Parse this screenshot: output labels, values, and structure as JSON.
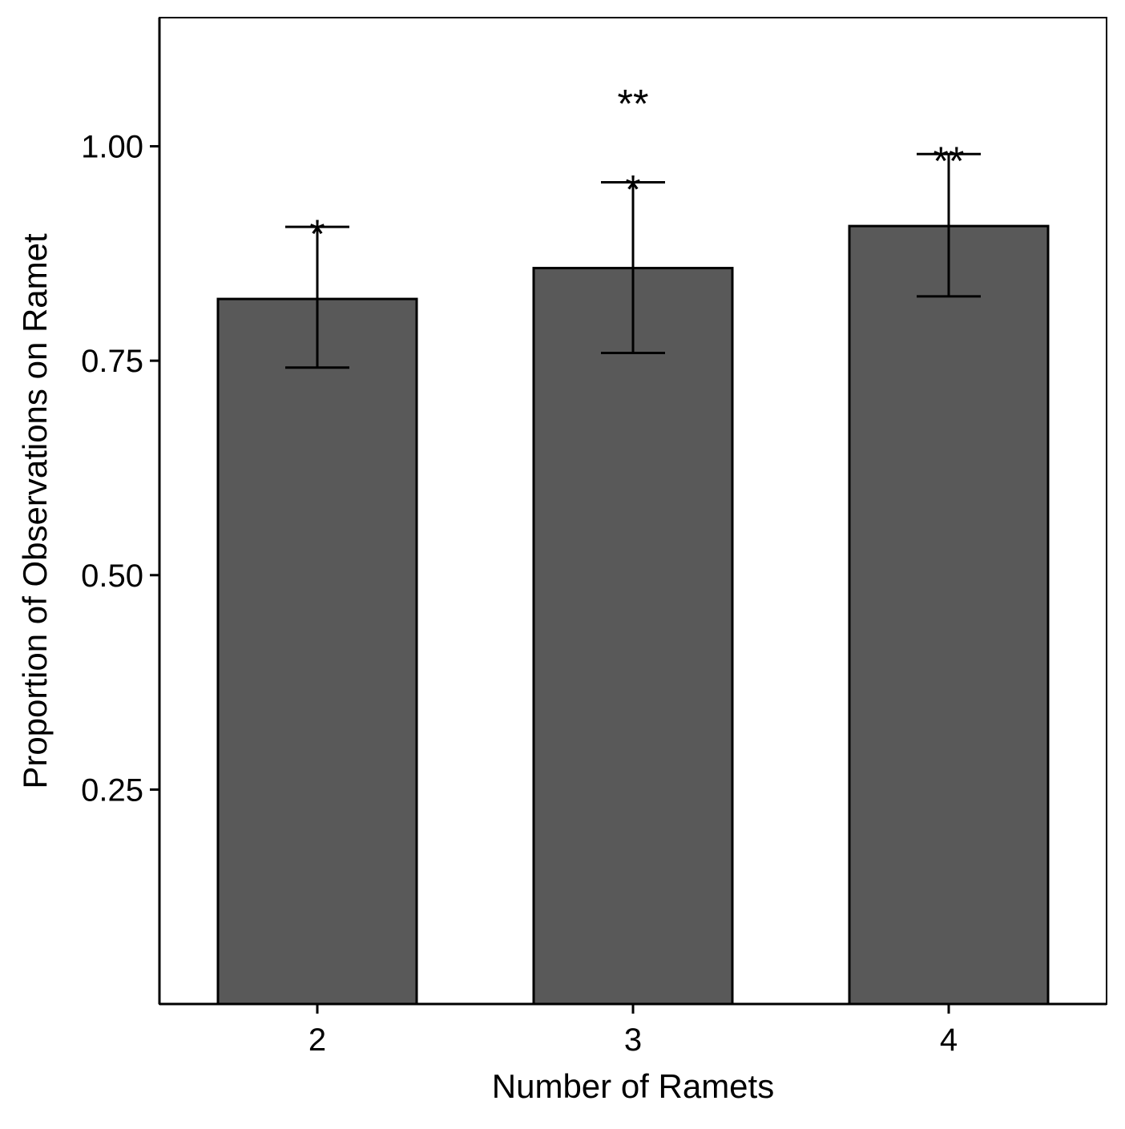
{
  "chart_data": {
    "type": "bar",
    "title": "",
    "xlabel": "Number of Ramets",
    "ylabel": "Proportion of Observations on Ramet",
    "categories": [
      "2",
      "3",
      "4"
    ],
    "values": [
      0.822,
      0.858,
      0.907
    ],
    "error_bars": [
      {
        "lower": 0.742,
        "upper": 0.906
      },
      {
        "lower": 0.759,
        "upper": 0.958
      },
      {
        "lower": 0.825,
        "upper": 0.991
      }
    ],
    "annotations": [
      {
        "category": "2",
        "lines": [
          "*"
        ]
      },
      {
        "category": "3",
        "lines": [
          "*",
          "**"
        ]
      },
      {
        "category": "4",
        "lines": [
          "**"
        ]
      }
    ],
    "yticks": [
      0.25,
      0.5,
      0.75,
      1.0
    ],
    "ytick_labels": [
      "0.25",
      "0.50",
      "0.75",
      "1.00"
    ],
    "ylim": [
      0,
      1.15
    ],
    "grid": false,
    "legend": "none",
    "colors": {
      "bar_fill": "#595959",
      "bar_stroke": "#000000",
      "axis": "#000000"
    }
  }
}
